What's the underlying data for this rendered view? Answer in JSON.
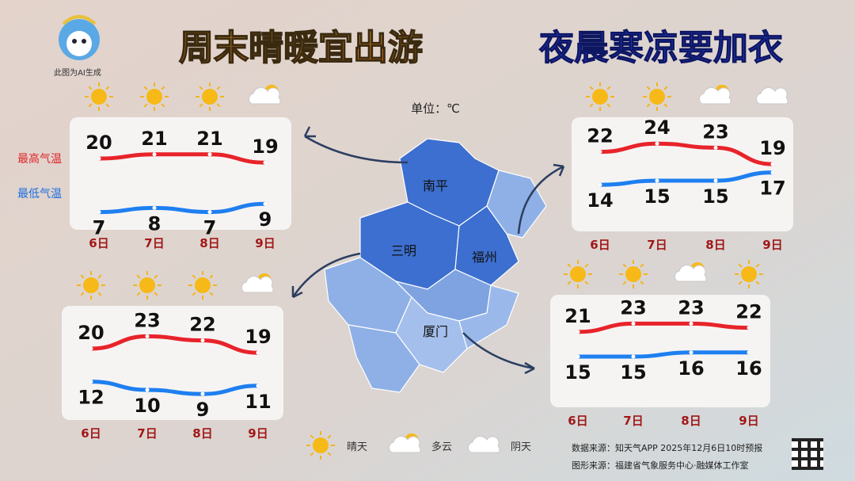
{
  "header": {
    "ai_note": "此图为AI生成",
    "title_left": "周末晴暖宜出游",
    "title_right": "夜晨寒凉要加衣"
  },
  "unit": "单位：℃",
  "series_labels": {
    "high": "最高气温",
    "low": "最低气温"
  },
  "days": [
    "6日",
    "7日",
    "8日",
    "9日"
  ],
  "cities": [
    {
      "name": "南平",
      "weather": [
        "晴天",
        "晴天",
        "晴天",
        "多云"
      ],
      "high": [
        20,
        21,
        21,
        19
      ],
      "low": [
        7,
        8,
        7,
        9
      ]
    },
    {
      "name": "福州",
      "weather": [
        "晴天",
        "晴天",
        "多云",
        "阴天"
      ],
      "high": [
        22,
        24,
        23,
        19
      ],
      "low": [
        14,
        15,
        15,
        17
      ]
    },
    {
      "name": "三明",
      "weather": [
        "晴天",
        "晴天",
        "晴天",
        "多云"
      ],
      "high": [
        20,
        23,
        22,
        19
      ],
      "low": [
        12,
        10,
        9,
        11
      ]
    },
    {
      "name": "厦门",
      "weather": [
        "晴天",
        "晴天",
        "多云",
        "晴天"
      ],
      "high": [
        21,
        23,
        23,
        22
      ],
      "low": [
        15,
        15,
        16,
        16
      ]
    }
  ],
  "weather_legend": [
    "晴天",
    "多云",
    "阴天"
  ],
  "source": [
    "数据来源：知天气APP 2025年12月6日10时预报",
    "图形来源：福建省气象服务中心·融媒体工作室"
  ]
}
